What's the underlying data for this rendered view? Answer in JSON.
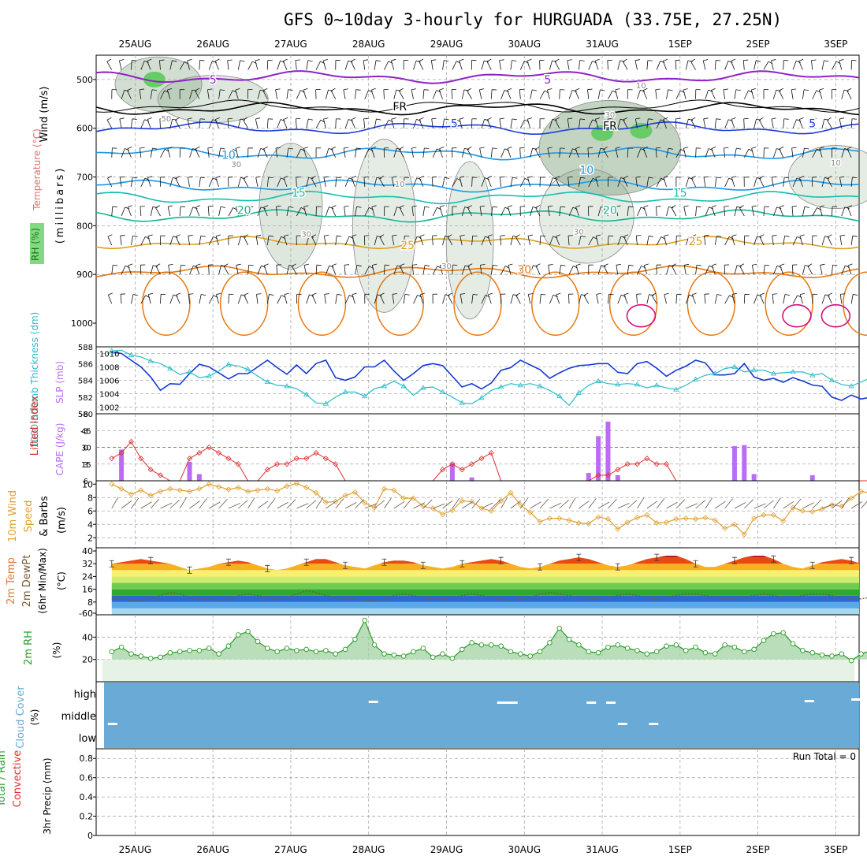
{
  "title": "GFS 0~10day 3-hourly for HURGUADA (33.75E, 27.25N)",
  "dates": [
    "25AUG",
    "26AUG",
    "27AUG",
    "28AUG",
    "29AUG",
    "30AUG",
    "31AUG",
    "1SEP",
    "2SEP",
    "3SEP"
  ],
  "colors": {
    "purple": "#8f22c8",
    "black": "#000000",
    "blue": "#1e3cd8",
    "lightblue": "#1e96e6",
    "teal": "#12c0b0",
    "green": "#16b492",
    "gold": "#dca022",
    "orange": "#e67812",
    "magenta": "#d8107a",
    "slp": "#1438d4",
    "thick": "#28bcc8",
    "cape": "#bb6cf4",
    "li": "#dc3030",
    "wind10": "#e0a030",
    "rh2m": "#2a9c2a",
    "cloud": "#6aaad6"
  },
  "panel1": {
    "ylabel_parts": [
      "Wind (m/s)",
      "Temperature (°C)",
      "RH (%)",
      "(millibars)"
    ],
    "yticks": [
      "500",
      "600",
      "700",
      "800",
      "900",
      "1000"
    ],
    "contour_labels": [
      {
        "text": "5",
        "color": "purple",
        "x": 1.0,
        "p": 500
      },
      {
        "text": "5",
        "color": "purple",
        "x": 5.3,
        "p": 500
      },
      {
        "text": "FR",
        "color": "black",
        "x": 3.4,
        "p": 555
      },
      {
        "text": "FR",
        "color": "black",
        "x": 6.1,
        "p": 595
      },
      {
        "text": "5",
        "color": "blue",
        "x": 4.1,
        "p": 590
      },
      {
        "text": "5",
        "color": "blue",
        "x": 8.7,
        "p": 590
      },
      {
        "text": "10",
        "color": "lightblue",
        "x": 1.2,
        "p": 655
      },
      {
        "text": "10",
        "color": "lightblue",
        "x": 5.8,
        "p": 685
      },
      {
        "text": "15",
        "color": "teal",
        "x": 2.1,
        "p": 732
      },
      {
        "text": "15",
        "color": "teal",
        "x": 7.0,
        "p": 732
      },
      {
        "text": "20",
        "color": "green",
        "x": 1.4,
        "p": 768
      },
      {
        "text": "20",
        "color": "green",
        "x": 6.1,
        "p": 768
      },
      {
        "text": "25",
        "color": "gold",
        "x": 3.5,
        "p": 840
      },
      {
        "text": "25",
        "color": "gold",
        "x": 7.2,
        "p": 832
      },
      {
        "text": "30",
        "color": "orange",
        "x": 5.0,
        "p": 890
      },
      {
        "text": "10",
        "color": "gray",
        "x": 6.5,
        "p": 510
      },
      {
        "text": "30",
        "color": "gray",
        "x": 6.1,
        "p": 570
      },
      {
        "text": "50",
        "color": "gray",
        "x": 0.4,
        "p": 578
      },
      {
        "text": "30",
        "color": "gray",
        "x": 1.3,
        "p": 672
      },
      {
        "text": "10",
        "color": "gray",
        "x": 3.4,
        "p": 712
      },
      {
        "text": "30",
        "color": "gray",
        "x": 2.2,
        "p": 815
      },
      {
        "text": "30",
        "color": "gray",
        "x": 4.0,
        "p": 880
      },
      {
        "text": "30",
        "color": "gray",
        "x": 5.7,
        "p": 810
      },
      {
        "text": "10",
        "color": "gray",
        "x": 9.0,
        "p": 668
      },
      {
        "text": "10",
        "color": "gray",
        "x": 9.5,
        "p": 788
      }
    ]
  },
  "panel2": {
    "ylabel_left": "1000-500mb Thickness (dm)",
    "ylabel_right": "SLP (mb)",
    "yticks_left": [
      "580",
      "582",
      "584",
      "586",
      "588"
    ],
    "yticks_right": [
      "1002",
      "1004",
      "1006",
      "1008",
      "1010"
    ]
  },
  "panel3": {
    "ylabel_left": "Lifted Index",
    "ylabel_right": "CAPE (J/kg)",
    "yticks_left": [
      "6",
      "3",
      "0",
      "-3",
      "-6"
    ],
    "yticks_right": [
      "15",
      "30",
      "45"
    ]
  },
  "panel4": {
    "ylabel_parts": [
      "10m Wind",
      "Speed",
      "& Barbs",
      "(m/s)"
    ],
    "yticks": [
      "2",
      "4",
      "6",
      "8",
      "10"
    ]
  },
  "panel5": {
    "ylabel_parts": [
      "2m Temp",
      "2m DewPt",
      "(6hr Min/Max)",
      "(°C)"
    ],
    "yticks": [
      "-60",
      "8",
      "16",
      "24",
      "32",
      "40"
    ]
  },
  "panel6": {
    "ylabel_parts": [
      "2m RH",
      "(%)"
    ],
    "yticks": [
      "20",
      "40"
    ]
  },
  "panel7": {
    "ylabel_parts": [
      "Cloud Cover",
      "(%)"
    ],
    "levels": [
      "high",
      "middle",
      "low"
    ]
  },
  "panel8": {
    "ylabel_parts": [
      "Total / Rain",
      "Convective",
      "3hr Precip (mm)"
    ],
    "yticks": [
      "0",
      "0.2",
      "0.4",
      "0.6",
      "0.8"
    ],
    "run_total": "Run Total = 0"
  },
  "chart_data": {
    "type": "line",
    "x_unit": "days from 25AUG 00UTC (3-hourly)",
    "x_start": -0.5,
    "x_end": 9.3,
    "slp_mb": [
      1010.2,
      1010.0,
      1009.0,
      1008.0,
      1006.5,
      1004.5,
      1005.5,
      1005.4,
      1007.0,
      1008.4,
      1008.0,
      1007.1,
      1006.2,
      1007.0,
      1007.0,
      1008.0,
      1009.0,
      1007.9,
      1006.9,
      1008.3,
      1007.0,
      1008.5,
      1009.0,
      1006.4,
      1006.0,
      1006.5,
      1008.0,
      1008.0,
      1009.0,
      1007.4,
      1006.0,
      1007.0,
      1008.2,
      1008.5,
      1008.2,
      1006.6,
      1005.0,
      1005.5,
      1004.7,
      1005.6,
      1007.5,
      1007.9,
      1009.0,
      1008.3,
      1007.6,
      1006.3,
      1007.1,
      1007.8,
      1008.2,
      1008.3,
      1008.5,
      1008.5,
      1007.2,
      1007.0,
      1008.5,
      1008.8,
      1007.8,
      1006.6,
      1007.5,
      1008.1,
      1009.0,
      1008.6,
      1006.8,
      1006.8,
      1007.0,
      1008.5,
      1006.5,
      1006.0,
      1006.3,
      1005.7,
      1006.4,
      1005.9,
      1005.3,
      1005.1,
      1003.5,
      1003.0,
      1003.8,
      1003.2,
      1003.5,
      1004.0,
      1003.2,
      1003.8,
      1002.3,
      1002.9,
      1003.1,
      1003.8,
      1004.2,
      1004.0,
      1004.8,
      1005.5
    ],
    "thickness_dm": [
      587.5,
      587.6,
      587.0,
      586.8,
      586.3,
      586.0,
      585.4,
      584.7,
      585.0,
      584.3,
      584.5,
      585.1,
      585.9,
      585.7,
      585.3,
      584.5,
      583.8,
      583.4,
      583.3,
      583.0,
      582.3,
      581.3,
      581.2,
      582.0,
      582.6,
      582.6,
      582.1,
      583.0,
      583.3,
      583.9,
      583.3,
      582.2,
      583.1,
      583.2,
      582.6,
      582.0,
      581.3,
      581.2,
      581.9,
      582.8,
      583.2,
      583.6,
      583.4,
      583.6,
      583.3,
      582.8,
      582.1,
      581.0,
      582.5,
      583.4,
      583.9,
      583.6,
      583.5,
      583.6,
      583.5,
      583.1,
      583.4,
      583.1,
      582.9,
      583.4,
      584.1,
      584.6,
      584.8,
      585.4,
      585.6,
      585.0,
      585.2,
      585.2,
      584.8,
      584.9,
      585.0,
      585.0,
      584.6,
      584.8,
      584.0,
      583.5,
      583.3,
      583.8,
      584.3,
      584.1,
      585.4,
      585.4,
      585.5,
      585.3,
      585.6,
      585.5,
      585.6,
      585.8,
      584.7,
      583.4
    ],
    "lifted_index": [
      2,
      1,
      -1,
      2,
      4,
      5,
      6,
      6,
      2,
      1,
      0,
      1,
      2,
      3,
      6,
      6,
      4,
      3,
      3,
      2,
      2,
      1,
      2,
      3,
      6,
      6,
      6,
      6,
      6,
      6,
      6,
      6,
      6,
      6,
      4,
      3,
      4,
      3,
      2,
      1,
      6,
      6,
      6,
      6,
      6,
      6,
      6,
      6,
      6,
      6,
      5,
      5,
      4,
      3,
      3,
      2,
      3,
      3,
      6,
      6,
      6,
      6,
      6,
      6,
      6,
      6,
      6,
      6,
      6,
      6,
      6,
      6,
      6,
      6,
      6,
      6,
      6,
      6,
      6,
      6,
      6,
      6,
      6,
      6,
      6,
      6,
      6,
      6,
      6,
      6
    ],
    "cape_jkg": [
      0,
      28,
      0,
      0,
      0,
      0,
      0,
      0,
      17,
      6,
      0,
      0,
      0,
      0,
      0,
      0,
      0,
      0,
      0,
      0,
      0,
      0,
      0,
      0,
      0,
      0,
      0,
      0,
      0,
      0,
      0,
      0,
      0,
      0,
      0,
      16,
      0,
      3,
      0,
      0,
      0,
      0,
      0,
      0,
      0,
      0,
      0,
      0,
      0,
      7,
      40,
      53,
      5,
      0,
      0,
      0,
      0,
      0,
      0,
      0,
      0,
      0,
      0,
      0,
      31,
      32,
      6,
      0,
      0,
      0,
      0,
      0,
      5,
      0,
      0,
      0,
      0,
      0,
      0,
      0,
      0,
      0,
      0,
      0,
      0,
      0,
      0,
      0,
      0,
      0
    ],
    "wind10_ms": [
      10.0,
      9.3,
      8.5,
      9.1,
      8.3,
      8.9,
      9.3,
      9.1,
      8.9,
      9.3,
      10.0,
      9.6,
      9.2,
      9.5,
      8.9,
      9.1,
      9.3,
      9.0,
      9.7,
      10.1,
      9.5,
      8.7,
      7.3,
      7.4,
      8.3,
      8.8,
      7.2,
      6.5,
      9.3,
      9.1,
      7.9,
      7.9,
      6.7,
      6.4,
      5.5,
      6.1,
      7.5,
      7.4,
      6.4,
      6.0,
      7.5,
      8.7,
      6.9,
      5.8,
      4.4,
      4.9,
      4.9,
      4.6,
      4.2,
      4.1,
      5.1,
      4.8,
      3.3,
      4.3,
      5.0,
      5.4,
      4.2,
      4.3,
      4.8,
      4.9,
      4.8,
      5.0,
      4.6,
      3.4,
      4.0,
      2.5,
      4.9,
      5.4,
      5.4,
      4.5,
      6.5,
      6.0,
      5.9,
      6.3,
      6.9,
      6.7,
      7.9,
      8.9,
      8.7,
      8.0,
      7.1,
      6.1,
      6.5,
      6.1,
      5.9,
      5.9,
      5.4,
      5.6,
      6.0,
      5.3
    ],
    "temp2m_c": [
      32,
      33,
      34,
      35,
      34,
      33,
      32,
      30,
      28,
      29,
      30,
      32,
      33,
      34,
      33,
      31,
      29,
      28,
      29,
      31,
      33,
      35,
      35,
      33,
      31,
      30,
      29,
      31,
      33,
      34,
      34,
      33,
      31,
      30,
      29,
      30,
      32,
      33,
      34,
      35,
      34,
      32,
      30,
      29,
      30,
      32,
      34,
      35,
      36,
      35,
      33,
      31,
      30,
      31,
      33,
      35,
      36,
      37,
      37,
      35,
      32,
      30,
      30,
      32,
      34,
      36,
      37,
      37,
      35,
      32,
      30,
      29,
      31,
      33,
      34,
      35,
      34,
      32,
      30,
      29,
      31,
      33,
      34,
      35,
      34,
      32,
      30,
      29,
      31,
      33
    ],
    "dewpt2m_c": [
      10,
      10,
      9,
      9,
      10,
      12,
      14,
      13,
      11,
      10,
      10,
      9,
      10,
      12,
      13,
      12,
      11,
      10,
      11,
      13,
      15,
      14,
      12,
      11,
      10,
      10,
      9,
      9,
      10,
      12,
      13,
      12,
      11,
      10,
      10,
      11,
      12,
      13,
      12,
      11,
      10,
      9,
      10,
      11,
      13,
      14,
      13,
      12,
      11,
      10,
      10,
      11,
      12,
      13,
      12,
      11,
      10,
      11,
      12,
      13,
      13,
      12,
      11,
      10,
      10,
      11,
      12,
      13,
      12,
      11,
      11,
      12,
      13,
      13,
      12,
      11,
      10,
      10,
      11,
      12,
      13,
      12,
      11,
      10,
      9,
      9,
      10,
      11,
      12,
      11
    ],
    "rh2m_pct": [
      27,
      31,
      25,
      23,
      21,
      22,
      26,
      27,
      28,
      28,
      30,
      25,
      32,
      42,
      45,
      36,
      30,
      27,
      30,
      28,
      29,
      27,
      28,
      25,
      29,
      38,
      55,
      33,
      25,
      24,
      23,
      27,
      30,
      22,
      25,
      21,
      29,
      35,
      33,
      33,
      32,
      27,
      25,
      23,
      27,
      35,
      48,
      38,
      33,
      27,
      26,
      31,
      33,
      30,
      28,
      25,
      27,
      32,
      33,
      28,
      31,
      26,
      25,
      33,
      31,
      27,
      29,
      37,
      43,
      44,
      34,
      28,
      26,
      24,
      23,
      25,
      19,
      25,
      28,
      33,
      37,
      24,
      26,
      22,
      20,
      25,
      28,
      34,
      38,
      31
    ],
    "cloud_high_pct": [
      0,
      0,
      0,
      0,
      0,
      0,
      0,
      0,
      0,
      0,
      0,
      0,
      0,
      0,
      0,
      0,
      0,
      0,
      0,
      0,
      0,
      0,
      0,
      0,
      0,
      0,
      0,
      0,
      0,
      0,
      0,
      0,
      0,
      0,
      0,
      0,
      0,
      0,
      0,
      0,
      0,
      0,
      0,
      0,
      0,
      0,
      0,
      0,
      0,
      0,
      0,
      0,
      0,
      0,
      0,
      0,
      0,
      0,
      0,
      0,
      0,
      0,
      0,
      0,
      0,
      0,
      0,
      0,
      0,
      0,
      0,
      0,
      0,
      0,
      0,
      0,
      0,
      0,
      0,
      0,
      0,
      0,
      0,
      0,
      0,
      0,
      0,
      0,
      0,
      0
    ],
    "precip_mm": [
      0,
      0,
      0,
      0,
      0,
      0,
      0,
      0,
      0,
      0,
      0,
      0,
      0,
      0,
      0,
      0,
      0,
      0,
      0,
      0,
      0,
      0,
      0,
      0,
      0,
      0,
      0,
      0,
      0,
      0,
      0,
      0,
      0,
      0,
      0,
      0,
      0,
      0,
      0,
      0,
      0,
      0,
      0,
      0,
      0,
      0,
      0,
      0,
      0,
      0,
      0,
      0,
      0,
      0,
      0,
      0,
      0,
      0,
      0,
      0,
      0,
      0,
      0,
      0,
      0,
      0,
      0,
      0,
      0,
      0,
      0,
      0,
      0,
      0,
      0,
      0,
      0,
      0,
      0,
      0,
      0,
      0,
      0,
      0,
      0,
      0,
      0,
      0,
      0,
      0
    ]
  }
}
